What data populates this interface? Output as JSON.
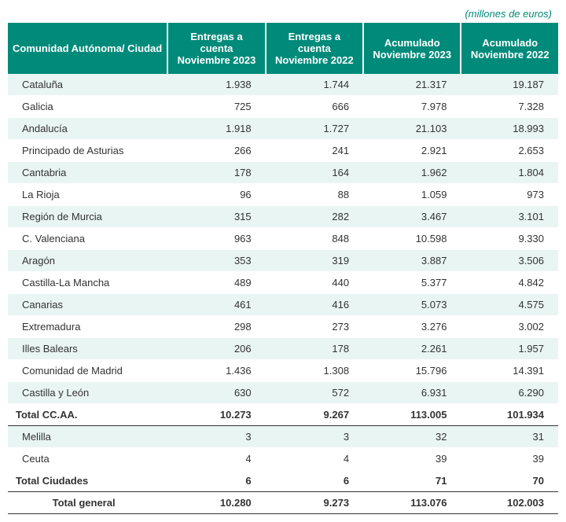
{
  "caption": "(millones de euros)",
  "columns": [
    "Comunidad Autónoma/ Ciudad",
    "Entregas a cuenta Noviembre 2023",
    "Entregas a cuenta Noviembre 2022",
    "Acumulado Noviembre 2023",
    "Acumulado Noviembre 2022"
  ],
  "rows_ccaa": [
    {
      "label": "Cataluña",
      "v": [
        "1.938",
        "1.744",
        "21.317",
        "19.187"
      ]
    },
    {
      "label": "Galicia",
      "v": [
        "725",
        "666",
        "7.978",
        "7.328"
      ]
    },
    {
      "label": "Andalucía",
      "v": [
        "1.918",
        "1.727",
        "21.103",
        "18.993"
      ]
    },
    {
      "label": "Principado de Asturias",
      "v": [
        "266",
        "241",
        "2.921",
        "2.653"
      ]
    },
    {
      "label": "Cantabria",
      "v": [
        "178",
        "164",
        "1.962",
        "1.804"
      ]
    },
    {
      "label": "La Rioja",
      "v": [
        "96",
        "88",
        "1.059",
        "973"
      ]
    },
    {
      "label": "Región de Murcia",
      "v": [
        "315",
        "282",
        "3.467",
        "3.101"
      ]
    },
    {
      "label": "C. Valenciana",
      "v": [
        "963",
        "848",
        "10.598",
        "9.330"
      ]
    },
    {
      "label": "Aragón",
      "v": [
        "353",
        "319",
        "3.887",
        "3.506"
      ]
    },
    {
      "label": "Castilla-La Mancha",
      "v": [
        "489",
        "440",
        "5.377",
        "4.842"
      ]
    },
    {
      "label": "Canarias",
      "v": [
        "461",
        "416",
        "5.073",
        "4.575"
      ]
    },
    {
      "label": "Extremadura",
      "v": [
        "298",
        "273",
        "3.276",
        "3.002"
      ]
    },
    {
      "label": "Illes Balears",
      "v": [
        "206",
        "178",
        "2.261",
        "1.957"
      ]
    },
    {
      "label": "Comunidad de Madrid",
      "v": [
        "1.436",
        "1.308",
        "15.796",
        "14.391"
      ]
    },
    {
      "label": "Castilla y León",
      "v": [
        "630",
        "572",
        "6.931",
        "6.290"
      ]
    }
  ],
  "total_ccaa": {
    "label": "Total CC.AA.",
    "v": [
      "10.273",
      "9.267",
      "113.005",
      "101.934"
    ]
  },
  "rows_ciudades": [
    {
      "label": "Melilla",
      "v": [
        "3",
        "3",
        "32",
        "31"
      ]
    },
    {
      "label": "Ceuta",
      "v": [
        "4",
        "4",
        "39",
        "39"
      ]
    }
  ],
  "total_ciudades": {
    "label": "Total Ciudades",
    "v": [
      "6",
      "6",
      "71",
      "70"
    ]
  },
  "total_general": {
    "label": "Total general",
    "v": [
      "10.280",
      "9.273",
      "113.076",
      "102.003"
    ]
  },
  "style": {
    "header_bg": "#008a7a",
    "header_fg": "#ffffff",
    "stripe_odd": "#e8f5f3",
    "stripe_even": "#ffffff",
    "caption_color": "#008a7a",
    "font_family": "Arial, Helvetica, sans-serif",
    "font_size_body": 13,
    "font_size_header": 13,
    "border_color": "#333333",
    "col_widths_pct": [
      30,
      17.5,
      17.5,
      17.5,
      17.5
    ]
  }
}
